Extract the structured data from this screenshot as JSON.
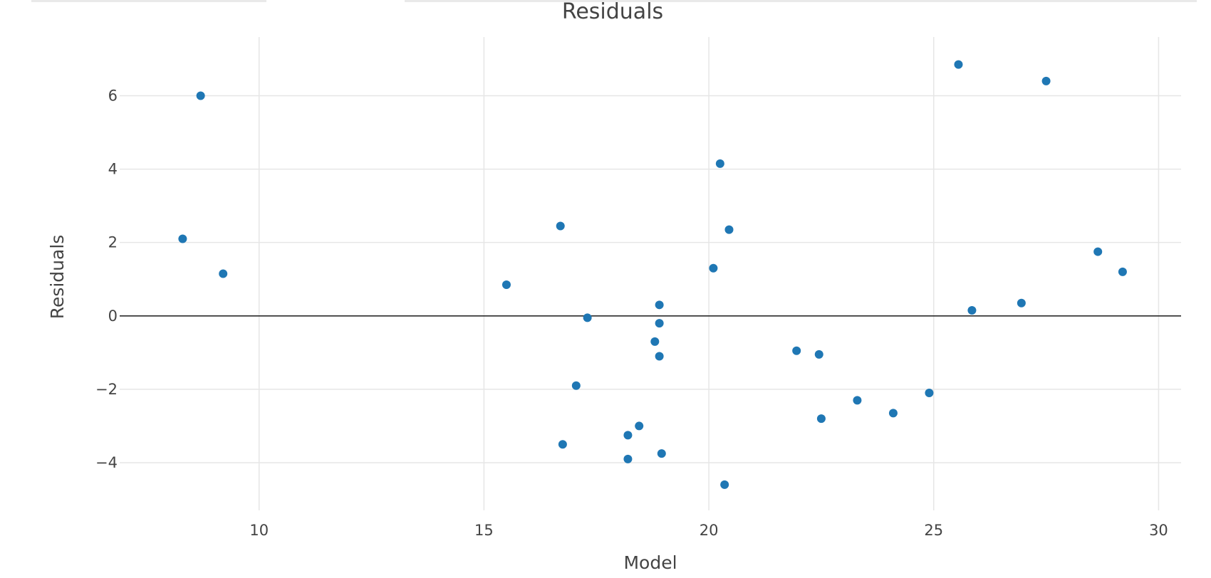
{
  "chart_data": {
    "type": "scatter",
    "title": "Residuals",
    "xlabel": "Model",
    "ylabel": "Residuals",
    "xlim": [
      6.9,
      30.5
    ],
    "ylim": [
      -5.3,
      7.6
    ],
    "x_ticks": [
      10,
      15,
      20,
      25,
      30
    ],
    "y_ticks": [
      -4,
      -2,
      0,
      2,
      4,
      6
    ],
    "grid": true,
    "zero_line": true,
    "marker_color": "#1f77b4",
    "points": [
      {
        "x": 8.3,
        "y": 2.1
      },
      {
        "x": 8.7,
        "y": 6.0
      },
      {
        "x": 9.2,
        "y": 1.15
      },
      {
        "x": 15.5,
        "y": 0.85
      },
      {
        "x": 16.7,
        "y": 2.45
      },
      {
        "x": 16.75,
        "y": -3.5
      },
      {
        "x": 17.05,
        "y": -1.9
      },
      {
        "x": 17.3,
        "y": -0.05
      },
      {
        "x": 18.2,
        "y": -3.25
      },
      {
        "x": 18.2,
        "y": -3.9
      },
      {
        "x": 18.45,
        "y": -3.0
      },
      {
        "x": 18.8,
        "y": -0.7
      },
      {
        "x": 18.9,
        "y": 0.3
      },
      {
        "x": 18.9,
        "y": -0.2
      },
      {
        "x": 18.9,
        "y": -1.1
      },
      {
        "x": 18.95,
        "y": -3.75
      },
      {
        "x": 20.1,
        "y": 1.3
      },
      {
        "x": 20.25,
        "y": 4.15
      },
      {
        "x": 20.35,
        "y": -4.6
      },
      {
        "x": 20.45,
        "y": 2.35
      },
      {
        "x": 21.95,
        "y": -0.95
      },
      {
        "x": 22.45,
        "y": -1.05
      },
      {
        "x": 22.5,
        "y": -2.8
      },
      {
        "x": 23.3,
        "y": -2.3
      },
      {
        "x": 24.1,
        "y": -2.65
      },
      {
        "x": 24.9,
        "y": -2.1
      },
      {
        "x": 25.55,
        "y": 6.85
      },
      {
        "x": 25.85,
        "y": 0.15
      },
      {
        "x": 26.95,
        "y": 0.35
      },
      {
        "x": 27.5,
        "y": 6.4
      },
      {
        "x": 28.65,
        "y": 1.75
      },
      {
        "x": 29.2,
        "y": 1.2
      }
    ]
  }
}
